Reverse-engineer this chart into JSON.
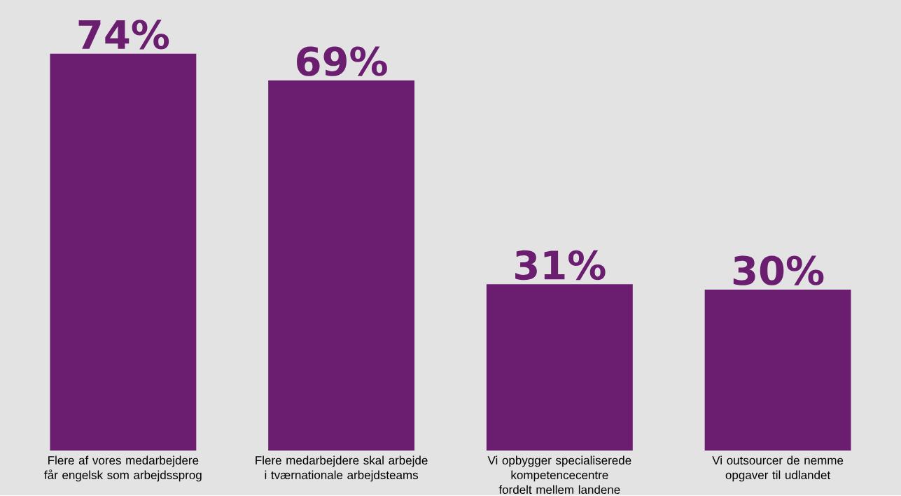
{
  "chart_data": {
    "type": "bar",
    "categories": [
      "Flere af vores medarbejdere får engelsk som arbejdssprog",
      "Flere medarbejdere skal arbejde i tværnationale arbejdsteams",
      "Vi opbygger specialiserede kompetencecentre fordelt mellem landene",
      "Vi outsourcer de nemme opgaver til udlandet"
    ],
    "values": [
      74,
      69,
      31,
      30
    ],
    "value_labels": [
      "74%",
      "69%",
      "31%",
      "30%"
    ],
    "color": "#6b1d6f"
  }
}
